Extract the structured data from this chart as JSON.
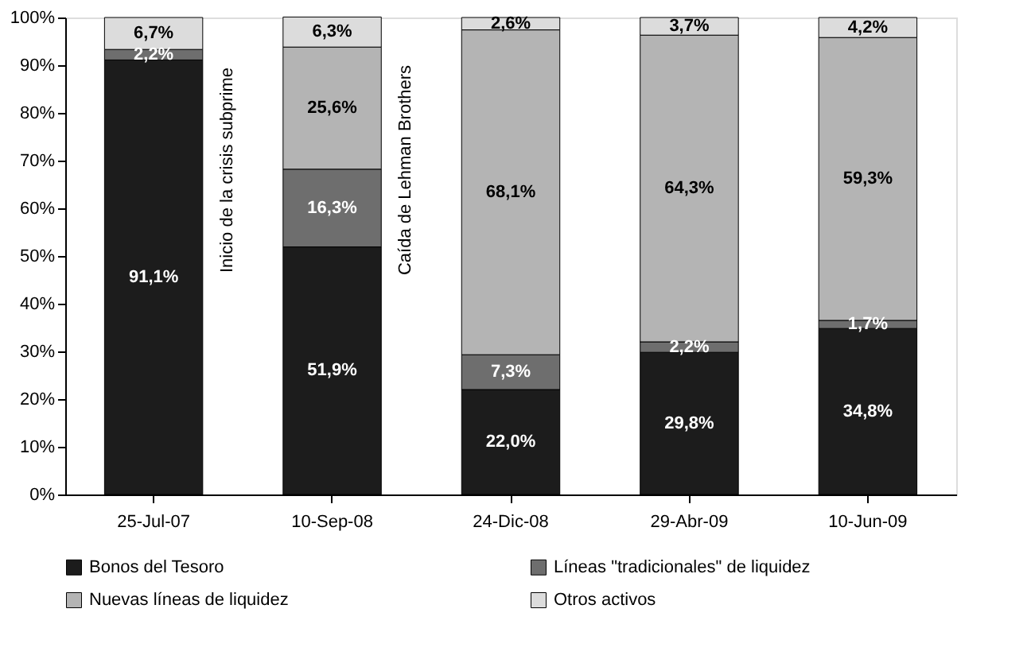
{
  "chart_data": {
    "type": "bar",
    "stacked": true,
    "categories": [
      "25-Jul-07",
      "10-Sep-08",
      "24-Dic-08",
      "29-Abr-09",
      "10-Jun-09"
    ],
    "series": [
      {
        "name": "Bonos del Tesoro",
        "color": "#1c1c1c",
        "values": [
          91.1,
          51.9,
          22.0,
          29.8,
          34.8
        ],
        "value_labels": [
          "91,1%",
          "51,9%",
          "22,0%",
          "29,8%",
          "34,8%"
        ]
      },
      {
        "name": "Líneas \"tradicionales\" de liquidez",
        "color": "#6e6e6e",
        "values": [
          2.2,
          16.3,
          7.3,
          2.2,
          1.7
        ],
        "value_labels": [
          "2,2%",
          "16,3%",
          "7,3%",
          "2,2%",
          "1,7%"
        ]
      },
      {
        "name": "Nuevas líneas de liquidez",
        "color": "#b4b4b4",
        "values": [
          null,
          25.6,
          68.1,
          64.3,
          59.3
        ],
        "value_labels": [
          null,
          "25,6%",
          "68,1%",
          "64,3%",
          "59,3%"
        ]
      },
      {
        "name": "Otros activos",
        "color": "#dcdcdc",
        "values": [
          6.7,
          6.3,
          2.6,
          3.7,
          4.2
        ],
        "value_labels": [
          "6,7%",
          "6,3%",
          "2,6%",
          "3,7%",
          "4,2%"
        ]
      }
    ],
    "ylim": [
      0,
      100
    ],
    "yticks": [
      {
        "value": 0,
        "label": "0%"
      },
      {
        "value": 10,
        "label": "10%"
      },
      {
        "value": 20,
        "label": "20%"
      },
      {
        "value": 30,
        "label": "30%"
      },
      {
        "value": 40,
        "label": "40%"
      },
      {
        "value": 50,
        "label": "50%"
      },
      {
        "value": 60,
        "label": "60%"
      },
      {
        "value": 70,
        "label": "70%"
      },
      {
        "value": 80,
        "label": "80%"
      },
      {
        "value": 90,
        "label": "90%"
      },
      {
        "value": 100,
        "label": "100%"
      }
    ],
    "annotations": [
      "Inicio de la crisis subprime",
      "Caída de Lehman Brothers"
    ],
    "legend": "bottom",
    "grid": false
  }
}
